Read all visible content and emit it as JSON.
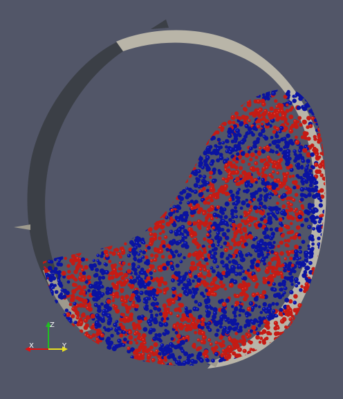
{
  "viewport": {
    "background": "#525668",
    "drum_colors": {
      "light": "#B9B5A8",
      "dark": "#3B3F46",
      "lip": "#9E9A8D"
    },
    "particle_colors": {
      "red": "#C51B14",
      "blue": "#0A13A0",
      "highlight_red": "#F04A3A",
      "highlight_blue": "#3F4BE0"
    }
  },
  "orientation_axes": {
    "x_label": "X",
    "y_label": "Y",
    "z_label": "Z",
    "x_color": "#E01010",
    "y_color": "#E8E020",
    "z_color": "#20C020"
  }
}
